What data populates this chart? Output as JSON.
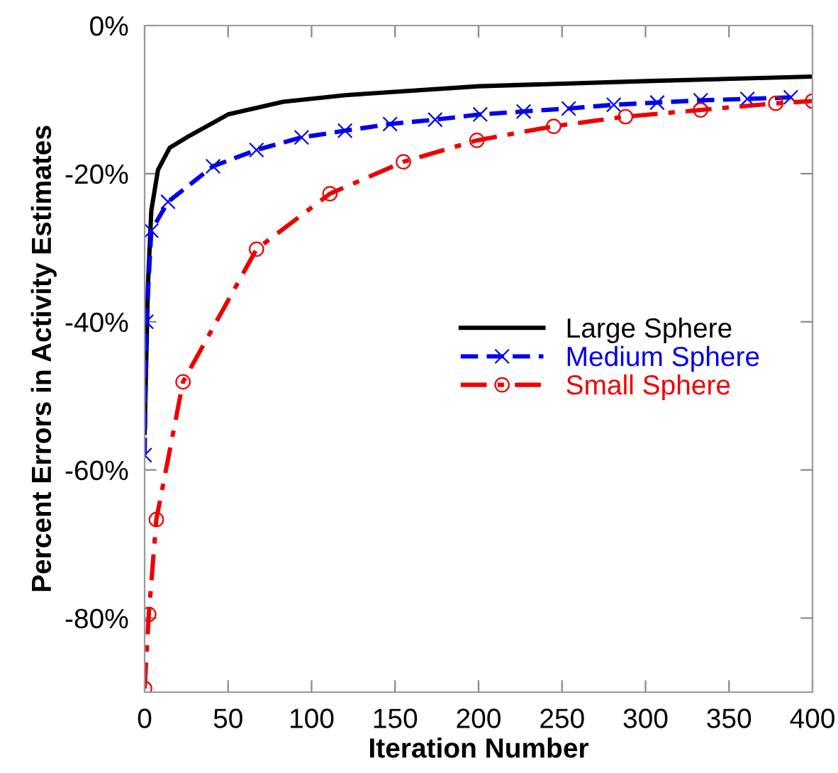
{
  "chart_data": {
    "type": "line",
    "xlabel": "Iteration Number",
    "ylabel": "Percent Errors in Activity Estimates",
    "xlim": [
      0,
      400
    ],
    "xticks": [
      0,
      50,
      100,
      150,
      200,
      250,
      300,
      350,
      400
    ],
    "ylim": [
      -90,
      0
    ],
    "yticks": [
      {
        "value": -80,
        "label": "-80%"
      },
      {
        "value": -60,
        "label": "-60%"
      },
      {
        "value": -40,
        "label": "-40%"
      },
      {
        "value": -20,
        "label": "-20%"
      },
      {
        "value": 0,
        "label": "0%"
      }
    ],
    "grid": false,
    "legend": "center right",
    "series": [
      {
        "name": "Large Sphere",
        "color": "#000000",
        "line_style": "solid",
        "marker": "none",
        "x": [
          0,
          2,
          4,
          8,
          15,
          26,
          50,
          83,
          120,
          200,
          300,
          400
        ],
        "values": [
          -55,
          -35,
          -25,
          -19.5,
          -16.5,
          -15,
          -12,
          -10.3,
          -9.4,
          -8.2,
          -7.5,
          -6.9
        ]
      },
      {
        "name": "Medium Sphere",
        "color": "#0000ee",
        "line_style": "dashed",
        "marker": "cross",
        "x": [
          0,
          1,
          4,
          14,
          41,
          67,
          94,
          120,
          147,
          174,
          201,
          227,
          254,
          281,
          307,
          333,
          361,
          387
        ],
        "values": [
          -58,
          -40,
          -27.7,
          -23.8,
          -19.0,
          -16.8,
          -15.1,
          -14.2,
          -13.3,
          -12.7,
          -12.0,
          -11.6,
          -11.2,
          -10.7,
          -10.4,
          -10.1,
          -9.9,
          -9.7
        ]
      },
      {
        "name": "Small Sphere",
        "color": "#ee0000",
        "line_style": "dashdot",
        "marker": "circle",
        "x": [
          0,
          2.5,
          7,
          23,
          67,
          111,
          155,
          199,
          245,
          288,
          333,
          378,
          400
        ],
        "values": [
          -89.5,
          -79.5,
          -66.7,
          -48.1,
          -30.2,
          -22.7,
          -18.4,
          -15.5,
          -13.6,
          -12.3,
          -11.4,
          -10.5,
          -10.2
        ]
      }
    ]
  }
}
